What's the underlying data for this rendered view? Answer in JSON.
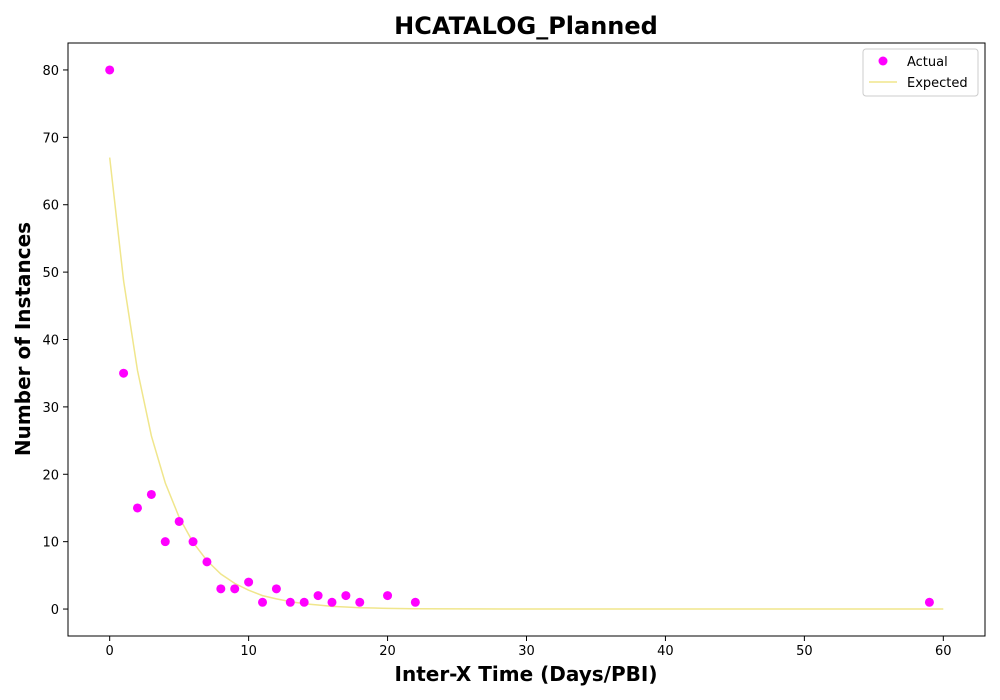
{
  "chart_data": {
    "type": "scatter",
    "title": "HCATALOG_Planned",
    "xlabel": "Inter-X Time (Days/PBI)",
    "ylabel": "Number of Instances",
    "xlim": [
      -3,
      63
    ],
    "ylim": [
      -4,
      84
    ],
    "xticks": [
      0,
      10,
      20,
      30,
      40,
      50,
      60
    ],
    "yticks": [
      0,
      10,
      20,
      30,
      40,
      50,
      60,
      70,
      80
    ],
    "grid": false,
    "legend_position": "top-right",
    "series": [
      {
        "name": "Actual",
        "kind": "scatter",
        "color": "#ff00ff",
        "points": [
          [
            0,
            80
          ],
          [
            1,
            35
          ],
          [
            2,
            15
          ],
          [
            3,
            17
          ],
          [
            4,
            10
          ],
          [
            5,
            13
          ],
          [
            6,
            10
          ],
          [
            7,
            7
          ],
          [
            8,
            3
          ],
          [
            9,
            3
          ],
          [
            10,
            4
          ],
          [
            11,
            1
          ],
          [
            12,
            3
          ],
          [
            13,
            1
          ],
          [
            14,
            1
          ],
          [
            15,
            2
          ],
          [
            16,
            1
          ],
          [
            17,
            2
          ],
          [
            18,
            1
          ],
          [
            20,
            2
          ],
          [
            22,
            1
          ],
          [
            59,
            1
          ]
        ]
      },
      {
        "name": "Expected",
        "kind": "line",
        "color": "#f0e68c",
        "points": [
          [
            0,
            67
          ],
          [
            1,
            48.7
          ],
          [
            2,
            35.4
          ],
          [
            3,
            25.7
          ],
          [
            4,
            18.7
          ],
          [
            5,
            13.6
          ],
          [
            6,
            9.9
          ],
          [
            7,
            7.2
          ],
          [
            8,
            5.2
          ],
          [
            9,
            3.8
          ],
          [
            10,
            2.8
          ],
          [
            11,
            2.0
          ],
          [
            12,
            1.5
          ],
          [
            13,
            1.1
          ],
          [
            14,
            0.8
          ],
          [
            15,
            0.6
          ],
          [
            16,
            0.4
          ],
          [
            17,
            0.3
          ],
          [
            18,
            0.2
          ],
          [
            19,
            0.15
          ],
          [
            20,
            0.1
          ],
          [
            22,
            0.05
          ],
          [
            25,
            0.02
          ],
          [
            30,
            0
          ],
          [
            40,
            0
          ],
          [
            50,
            0
          ],
          [
            60,
            0
          ]
        ]
      }
    ]
  }
}
